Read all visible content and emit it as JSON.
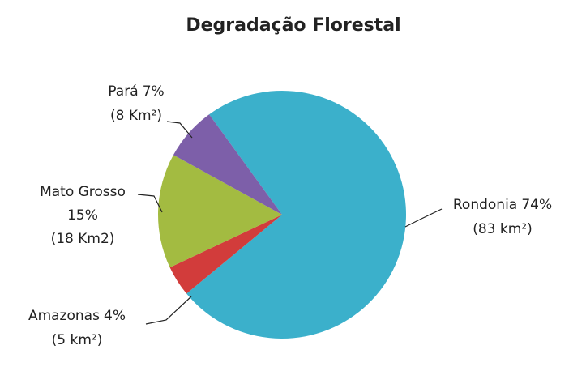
{
  "chart_data": {
    "type": "pie",
    "title": "Degradação Florestal",
    "categories": [
      "Rondonia",
      "Amazonas",
      "Mato Grosso",
      "Pará"
    ],
    "values": [
      74,
      4,
      15,
      7
    ],
    "value_labels": [
      "74%",
      "4%",
      "15%",
      "7%"
    ],
    "areas": [
      "(83 km²)",
      "(5 km²)",
      "(18 Km2)",
      "(8 Km²)"
    ],
    "colors": [
      "#3bb0cb",
      "#d23c3b",
      "#a3bb41",
      "#7d5fa9"
    ]
  }
}
